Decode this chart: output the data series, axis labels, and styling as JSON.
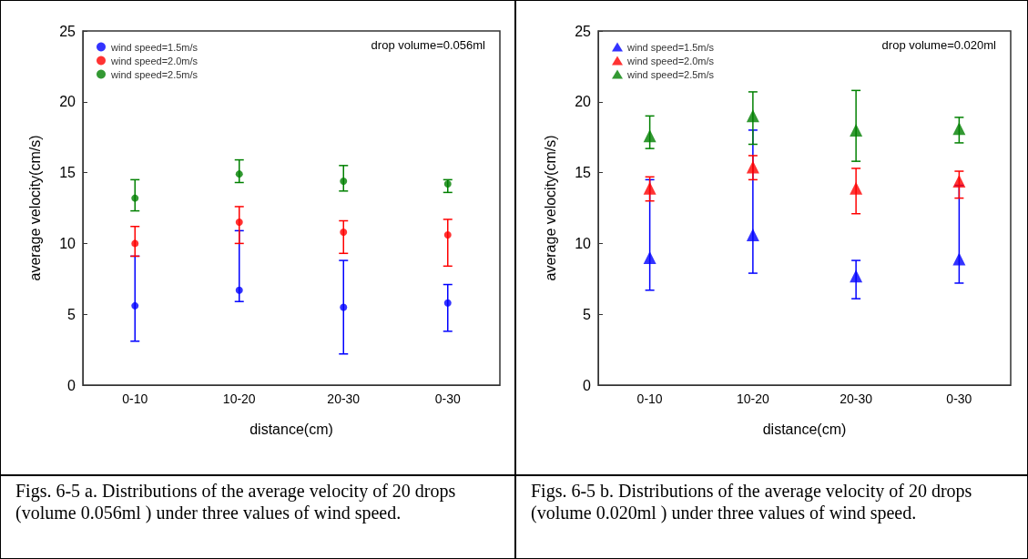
{
  "chart_data": [
    {
      "type": "scatter",
      "categories": [
        "0-10",
        "10-20",
        "20-30",
        "0-30"
      ],
      "xlabel": "distance(cm)",
      "ylabel": "average velocity(cm/s)",
      "ylim": [
        0,
        25
      ],
      "yticks": [
        0,
        5,
        10,
        15,
        20,
        25
      ],
      "grid": false,
      "legend": "top left",
      "marker": "circle",
      "annotations": [
        "drop volume=0.056ml",
        "Figs. 6-5 a. Distributions of the average velocity of 20 drops (volume 0.056ml ) under three values of wind speed."
      ],
      "series": [
        {
          "name": "wind speed=1.5m/s",
          "color": "#0000ff",
          "values": [
            5.6,
            6.7,
            5.5,
            5.8
          ],
          "errors": [
            [
              3.1,
              9.1
            ],
            [
              5.9,
              10.9
            ],
            [
              2.2,
              8.8
            ],
            [
              3.8,
              7.1
            ]
          ]
        },
        {
          "name": "wind speed=2.0m/s",
          "color": "#ff0000",
          "values": [
            10.0,
            11.5,
            10.8,
            10.6
          ],
          "errors": [
            [
              9.1,
              11.2
            ],
            [
              10.0,
              12.6
            ],
            [
              9.3,
              11.6
            ],
            [
              8.4,
              11.7
            ]
          ]
        },
        {
          "name": "wind speed=2.5m/s",
          "color": "#008000",
          "values": [
            13.2,
            14.9,
            14.4,
            14.2
          ],
          "errors": [
            [
              12.3,
              14.5
            ],
            [
              14.3,
              15.9
            ],
            [
              13.7,
              15.5
            ],
            [
              13.6,
              14.5
            ]
          ]
        }
      ]
    },
    {
      "type": "scatter",
      "categories": [
        "0-10",
        "10-20",
        "20-30",
        "0-30"
      ],
      "xlabel": "distance(cm)",
      "ylabel": "average velocity(cm/s)",
      "ylim": [
        0,
        25
      ],
      "yticks": [
        0,
        5,
        10,
        15,
        20,
        25
      ],
      "grid": false,
      "legend": "top left",
      "marker": "triangle",
      "annotations": [
        "drop volume=0.020ml",
        "Figs. 6-5 b. Distributions of the average velocity of 20 drops (volume 0.020ml ) under three values of wind speed."
      ],
      "series": [
        {
          "name": "wind speed=1.5m/s",
          "color": "#0000ff",
          "values": [
            9.0,
            10.6,
            7.7,
            8.9
          ],
          "errors": [
            [
              6.7,
              14.5
            ],
            [
              7.9,
              18.0
            ],
            [
              6.1,
              8.8
            ],
            [
              7.2,
              14.1
            ]
          ]
        },
        {
          "name": "wind speed=2.0m/s",
          "color": "#ff0000",
          "values": [
            13.9,
            15.4,
            13.9,
            14.4
          ],
          "errors": [
            [
              13.0,
              14.7
            ],
            [
              14.5,
              16.2
            ],
            [
              12.1,
              15.3
            ],
            [
              13.2,
              15.1
            ]
          ]
        },
        {
          "name": "wind speed=2.5m/s",
          "color": "#008000",
          "values": [
            17.6,
            19.0,
            18.0,
            18.1
          ],
          "errors": [
            [
              16.7,
              19.0
            ],
            [
              17.0,
              20.7
            ],
            [
              15.8,
              20.8
            ],
            [
              17.1,
              18.9
            ]
          ]
        }
      ]
    }
  ]
}
